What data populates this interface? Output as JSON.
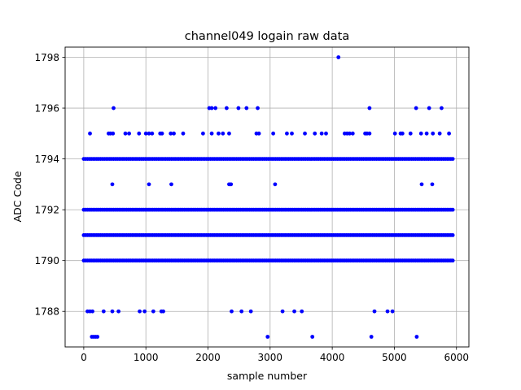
{
  "chart_data": {
    "type": "scatter",
    "title": "channel049 logain raw data",
    "xlabel": "sample number",
    "ylabel": "ADC Code",
    "xlim": [
      -300,
      6200
    ],
    "ylim": [
      1786.6,
      1798.4
    ],
    "xticks": [
      0,
      1000,
      2000,
      3000,
      4000,
      5000,
      6000
    ],
    "yticks": [
      1788,
      1790,
      1792,
      1794,
      1796,
      1798
    ],
    "grid": true,
    "marker_color": "#0000ff",
    "dense_rows": {
      "x_range": [
        0,
        5950
      ],
      "values": [
        1790,
        1791,
        1792,
        1794
      ]
    },
    "outliers": [
      {
        "x": 480,
        "y": 1796
      },
      {
        "x": 2020,
        "y": 1796
      },
      {
        "x": 2060,
        "y": 1796
      },
      {
        "x": 2120,
        "y": 1796
      },
      {
        "x": 2300,
        "y": 1796
      },
      {
        "x": 2490,
        "y": 1796
      },
      {
        "x": 2620,
        "y": 1796
      },
      {
        "x": 2800,
        "y": 1796
      },
      {
        "x": 4600,
        "y": 1796
      },
      {
        "x": 5350,
        "y": 1796
      },
      {
        "x": 5560,
        "y": 1796
      },
      {
        "x": 5760,
        "y": 1796
      },
      {
        "x": 4100,
        "y": 1798
      },
      {
        "x": 100,
        "y": 1795
      },
      {
        "x": 400,
        "y": 1795
      },
      {
        "x": 430,
        "y": 1795
      },
      {
        "x": 470,
        "y": 1795
      },
      {
        "x": 670,
        "y": 1795
      },
      {
        "x": 730,
        "y": 1795
      },
      {
        "x": 890,
        "y": 1795
      },
      {
        "x": 1000,
        "y": 1795
      },
      {
        "x": 1050,
        "y": 1795
      },
      {
        "x": 1100,
        "y": 1795
      },
      {
        "x": 1230,
        "y": 1795
      },
      {
        "x": 1260,
        "y": 1795
      },
      {
        "x": 1400,
        "y": 1795
      },
      {
        "x": 1450,
        "y": 1795
      },
      {
        "x": 1600,
        "y": 1795
      },
      {
        "x": 1920,
        "y": 1795
      },
      {
        "x": 2060,
        "y": 1795
      },
      {
        "x": 2170,
        "y": 1795
      },
      {
        "x": 2240,
        "y": 1795
      },
      {
        "x": 2340,
        "y": 1795
      },
      {
        "x": 2780,
        "y": 1795
      },
      {
        "x": 2820,
        "y": 1795
      },
      {
        "x": 3050,
        "y": 1795
      },
      {
        "x": 3270,
        "y": 1795
      },
      {
        "x": 3350,
        "y": 1795
      },
      {
        "x": 3560,
        "y": 1795
      },
      {
        "x": 3720,
        "y": 1795
      },
      {
        "x": 3830,
        "y": 1795
      },
      {
        "x": 3900,
        "y": 1795
      },
      {
        "x": 4200,
        "y": 1795
      },
      {
        "x": 4240,
        "y": 1795
      },
      {
        "x": 4280,
        "y": 1795
      },
      {
        "x": 4330,
        "y": 1795
      },
      {
        "x": 4530,
        "y": 1795
      },
      {
        "x": 4560,
        "y": 1795
      },
      {
        "x": 4600,
        "y": 1795
      },
      {
        "x": 5010,
        "y": 1795
      },
      {
        "x": 5100,
        "y": 1795
      },
      {
        "x": 5130,
        "y": 1795
      },
      {
        "x": 5260,
        "y": 1795
      },
      {
        "x": 5430,
        "y": 1795
      },
      {
        "x": 5520,
        "y": 1795
      },
      {
        "x": 5620,
        "y": 1795
      },
      {
        "x": 5730,
        "y": 1795
      },
      {
        "x": 5880,
        "y": 1795
      },
      {
        "x": 460,
        "y": 1793
      },
      {
        "x": 1050,
        "y": 1793
      },
      {
        "x": 1410,
        "y": 1793
      },
      {
        "x": 2340,
        "y": 1793
      },
      {
        "x": 2370,
        "y": 1793
      },
      {
        "x": 3080,
        "y": 1793
      },
      {
        "x": 5440,
        "y": 1793
      },
      {
        "x": 5610,
        "y": 1793
      },
      {
        "x": 60,
        "y": 1788
      },
      {
        "x": 100,
        "y": 1788
      },
      {
        "x": 140,
        "y": 1788
      },
      {
        "x": 320,
        "y": 1788
      },
      {
        "x": 460,
        "y": 1788
      },
      {
        "x": 560,
        "y": 1788
      },
      {
        "x": 900,
        "y": 1788
      },
      {
        "x": 980,
        "y": 1788
      },
      {
        "x": 1120,
        "y": 1788
      },
      {
        "x": 1250,
        "y": 1788
      },
      {
        "x": 1280,
        "y": 1788
      },
      {
        "x": 2380,
        "y": 1788
      },
      {
        "x": 2540,
        "y": 1788
      },
      {
        "x": 2690,
        "y": 1788
      },
      {
        "x": 3200,
        "y": 1788
      },
      {
        "x": 3390,
        "y": 1788
      },
      {
        "x": 3510,
        "y": 1788
      },
      {
        "x": 4680,
        "y": 1788
      },
      {
        "x": 4890,
        "y": 1788
      },
      {
        "x": 4970,
        "y": 1788
      },
      {
        "x": 130,
        "y": 1787
      },
      {
        "x": 160,
        "y": 1787
      },
      {
        "x": 190,
        "y": 1787
      },
      {
        "x": 220,
        "y": 1787
      },
      {
        "x": 2960,
        "y": 1787
      },
      {
        "x": 3680,
        "y": 1787
      },
      {
        "x": 4630,
        "y": 1787
      },
      {
        "x": 5360,
        "y": 1787
      }
    ]
  }
}
